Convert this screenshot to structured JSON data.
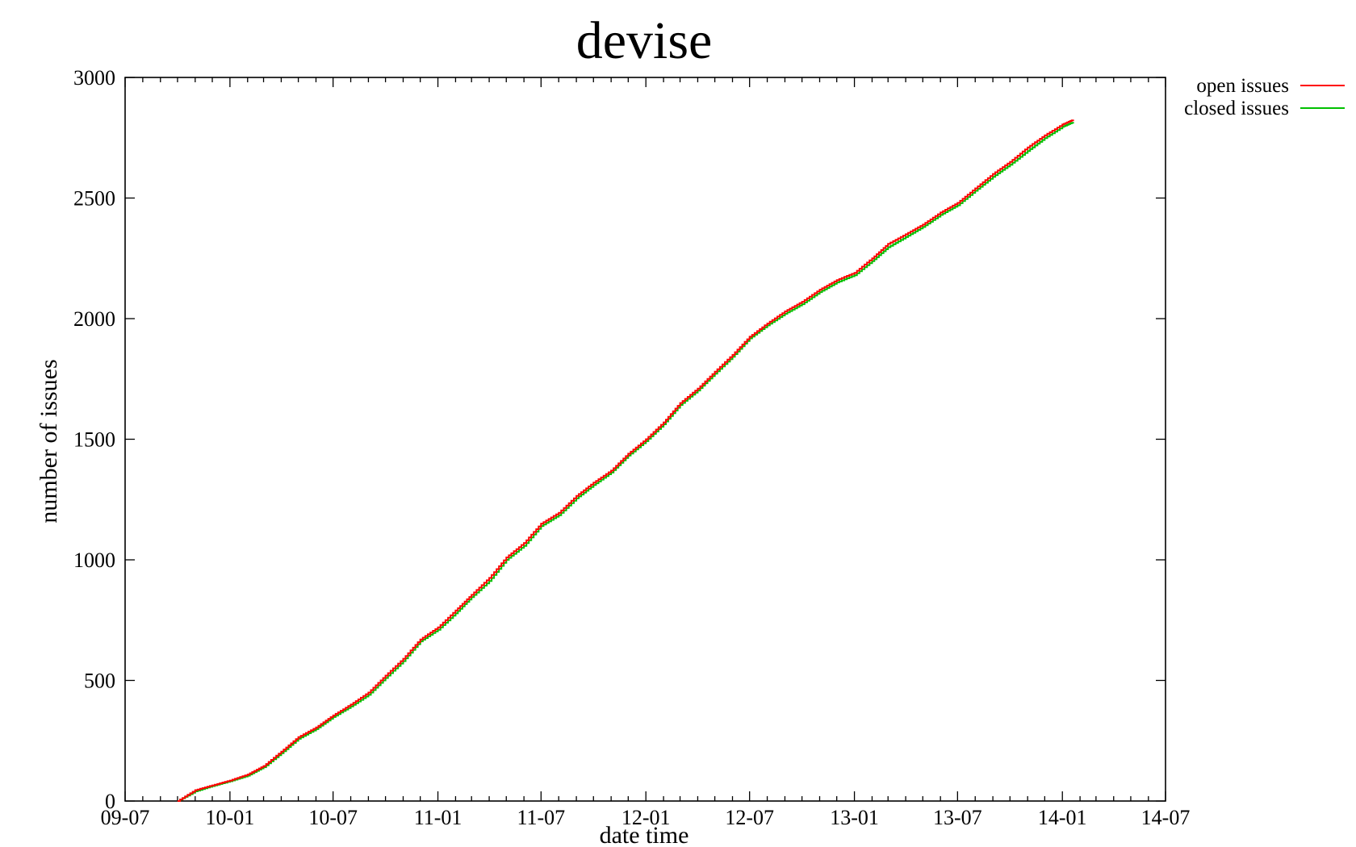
{
  "chart_data": {
    "type": "line",
    "title": "devise",
    "xlabel": "date time",
    "ylabel": "number of issues",
    "x_tick_labels": [
      "09-07",
      "10-01",
      "10-07",
      "11-01",
      "11-07",
      "12-01",
      "12-07",
      "13-01",
      "13-07",
      "14-01",
      "14-07"
    ],
    "y_tick_labels": [
      "0",
      "500",
      "1000",
      "1500",
      "2000",
      "2500",
      "3000"
    ],
    "y_ticks": [
      0,
      500,
      1000,
      1500,
      2000,
      2500,
      3000
    ],
    "xlim": [
      "2009-07-01",
      "2014-07-01"
    ],
    "ylim": [
      0,
      3000
    ],
    "grid": false,
    "legend_position": "outside-top-right",
    "series": [
      {
        "name": "open issues",
        "color": "#ff0000",
        "points": [
          [
            "2009-10-01",
            0
          ],
          [
            "2009-11-01",
            45
          ],
          [
            "2009-12-01",
            65
          ],
          [
            "2010-01-01",
            85
          ],
          [
            "2010-02-01",
            110
          ],
          [
            "2010-03-01",
            145
          ],
          [
            "2010-04-01",
            205
          ],
          [
            "2010-05-01",
            265
          ],
          [
            "2010-06-01",
            305
          ],
          [
            "2010-07-01",
            355
          ],
          [
            "2010-08-01",
            400
          ],
          [
            "2010-09-01",
            450
          ],
          [
            "2010-10-01",
            520
          ],
          [
            "2010-11-01",
            590
          ],
          [
            "2010-12-01",
            670
          ],
          [
            "2011-01-01",
            720
          ],
          [
            "2011-02-01",
            790
          ],
          [
            "2011-03-01",
            855
          ],
          [
            "2011-04-01",
            925
          ],
          [
            "2011-05-01",
            1010
          ],
          [
            "2011-06-01",
            1070
          ],
          [
            "2011-07-01",
            1150
          ],
          [
            "2011-08-01",
            1195
          ],
          [
            "2011-09-01",
            1265
          ],
          [
            "2011-10-01",
            1320
          ],
          [
            "2011-11-01",
            1370
          ],
          [
            "2011-12-01",
            1440
          ],
          [
            "2012-01-01",
            1500
          ],
          [
            "2012-02-01",
            1570
          ],
          [
            "2012-03-01",
            1650
          ],
          [
            "2012-04-01",
            1710
          ],
          [
            "2012-05-01",
            1780
          ],
          [
            "2012-06-01",
            1850
          ],
          [
            "2012-07-01",
            1925
          ],
          [
            "2012-08-01",
            1980
          ],
          [
            "2012-09-01",
            2030
          ],
          [
            "2012-10-01",
            2070
          ],
          [
            "2012-11-01",
            2120
          ],
          [
            "2012-12-01",
            2160
          ],
          [
            "2013-01-01",
            2190
          ],
          [
            "2013-02-01",
            2250
          ],
          [
            "2013-03-01",
            2310
          ],
          [
            "2013-04-01",
            2350
          ],
          [
            "2013-05-01",
            2390
          ],
          [
            "2013-06-01",
            2440
          ],
          [
            "2013-07-01",
            2480
          ],
          [
            "2013-08-01",
            2540
          ],
          [
            "2013-09-01",
            2600
          ],
          [
            "2013-10-01",
            2650
          ],
          [
            "2013-11-01",
            2710
          ],
          [
            "2013-12-01",
            2760
          ],
          [
            "2014-01-01",
            2805
          ],
          [
            "2014-01-20",
            2825
          ]
        ]
      },
      {
        "name": "closed issues",
        "color": "#00c000",
        "points": [
          [
            "2009-10-01",
            0
          ],
          [
            "2009-11-01",
            40
          ],
          [
            "2009-12-01",
            62
          ],
          [
            "2010-01-01",
            82
          ],
          [
            "2010-02-01",
            105
          ],
          [
            "2010-03-01",
            140
          ],
          [
            "2010-04-01",
            198
          ],
          [
            "2010-05-01",
            258
          ],
          [
            "2010-06-01",
            298
          ],
          [
            "2010-07-01",
            348
          ],
          [
            "2010-08-01",
            392
          ],
          [
            "2010-09-01",
            440
          ],
          [
            "2010-10-01",
            510
          ],
          [
            "2010-11-01",
            580
          ],
          [
            "2010-12-01",
            662
          ],
          [
            "2011-01-01",
            710
          ],
          [
            "2011-02-01",
            778
          ],
          [
            "2011-03-01",
            845
          ],
          [
            "2011-04-01",
            912
          ],
          [
            "2011-05-01",
            1000
          ],
          [
            "2011-06-01",
            1058
          ],
          [
            "2011-07-01",
            1140
          ],
          [
            "2011-08-01",
            1185
          ],
          [
            "2011-09-01",
            1255
          ],
          [
            "2011-10-01",
            1310
          ],
          [
            "2011-11-01",
            1362
          ],
          [
            "2011-12-01",
            1432
          ],
          [
            "2012-01-01",
            1492
          ],
          [
            "2012-02-01",
            1562
          ],
          [
            "2012-03-01",
            1642
          ],
          [
            "2012-04-01",
            1702
          ],
          [
            "2012-05-01",
            1772
          ],
          [
            "2012-06-01",
            1842
          ],
          [
            "2012-07-01",
            1918
          ],
          [
            "2012-08-01",
            1972
          ],
          [
            "2012-09-01",
            2020
          ],
          [
            "2012-10-01",
            2060
          ],
          [
            "2012-11-01",
            2110
          ],
          [
            "2012-12-01",
            2150
          ],
          [
            "2013-01-01",
            2180
          ],
          [
            "2013-02-01",
            2238
          ],
          [
            "2013-03-01",
            2296
          ],
          [
            "2013-04-01",
            2338
          ],
          [
            "2013-05-01",
            2380
          ],
          [
            "2013-06-01",
            2430
          ],
          [
            "2013-07-01",
            2470
          ],
          [
            "2013-08-01",
            2530
          ],
          [
            "2013-09-01",
            2588
          ],
          [
            "2013-10-01",
            2638
          ],
          [
            "2013-11-01",
            2695
          ],
          [
            "2013-12-01",
            2748
          ],
          [
            "2014-01-01",
            2795
          ],
          [
            "2014-01-20",
            2815
          ]
        ]
      }
    ]
  }
}
